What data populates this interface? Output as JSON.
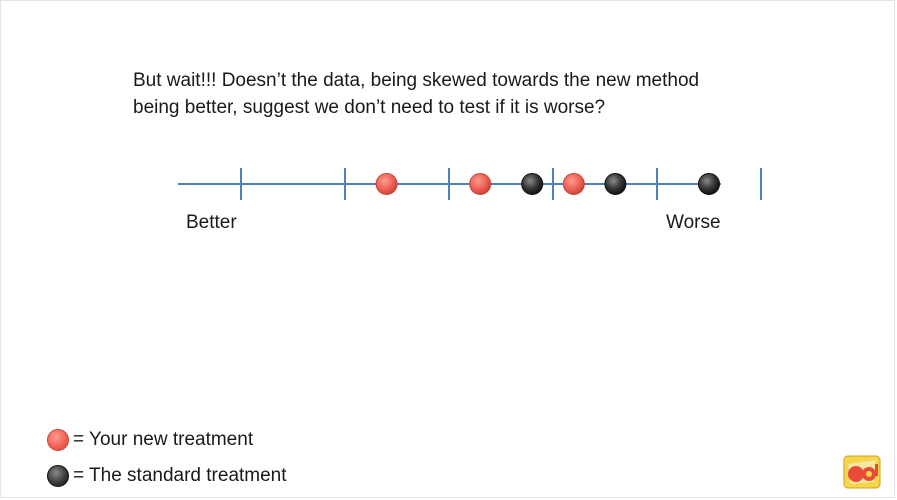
{
  "question": {
    "line1": "But wait!!! Doesn’t the data, being skewed towards the new method",
    "line2": "being better, suggest we don’t need to test if it is worse?"
  },
  "scale": {
    "left_label": "Better",
    "right_label": "Worse",
    "tick_count": 6,
    "points": [
      {
        "treatment": "new",
        "position": 1.4
      },
      {
        "treatment": "new",
        "position": 2.3
      },
      {
        "treatment": "standard",
        "position": 2.8
      },
      {
        "treatment": "new",
        "position": 3.2
      },
      {
        "treatment": "standard",
        "position": 3.6
      },
      {
        "treatment": "standard",
        "position": 4.5
      }
    ]
  },
  "legend": {
    "new_label": "= Your new treatment",
    "standard_label": "= The standard treatment"
  },
  "colors": {
    "axis": "#4f81bd",
    "new": "#f06258",
    "standard": "#3a3a3a",
    "text": "#1a1a1a"
  },
  "logo_icon": "so-logo-icon"
}
